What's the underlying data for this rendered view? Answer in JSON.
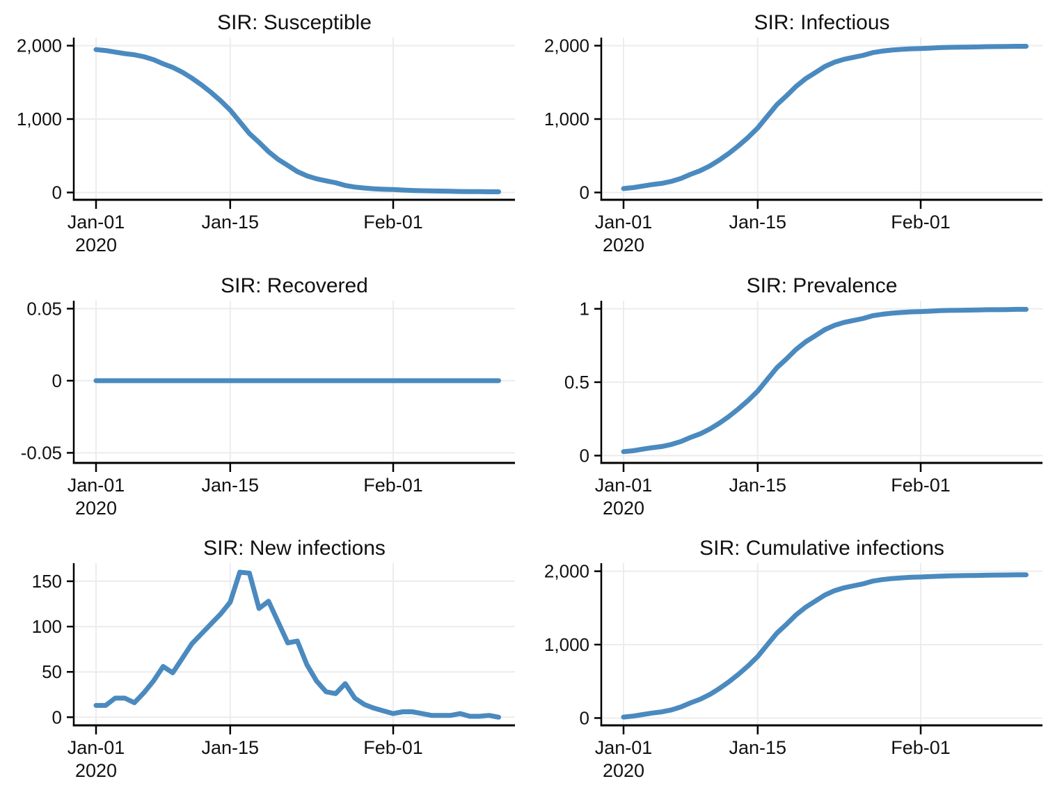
{
  "figure": {
    "background": "#ffffff"
  },
  "colors": {
    "line": "#4a8abf",
    "grid": "#ececec",
    "axis": "#000000",
    "text": "#111111"
  },
  "chart_data": {
    "type": "line",
    "layout": "2x3-grid",
    "grid": true,
    "legend": false,
    "n_points": 43,
    "x_start_date": "2020-01-01",
    "x_end_date": "2020-02-12",
    "x_ticks": [
      {
        "day": 0,
        "label": "Jan-01",
        "sublabel": "2020"
      },
      {
        "day": 14,
        "label": "Jan-15",
        "sublabel": ""
      },
      {
        "day": 31,
        "label": "Feb-01",
        "sublabel": ""
      }
    ],
    "charts": [
      {
        "id": "susceptible",
        "title": "SIR: Susceptible",
        "ylim": [
          -100,
          2110
        ],
        "yticks": [
          {
            "v": 0,
            "label": "0"
          },
          {
            "v": 1000,
            "label": "1,000"
          },
          {
            "v": 2000,
            "label": "2,000"
          }
        ],
        "values": [
          1947,
          1934,
          1913,
          1892,
          1876,
          1849,
          1809,
          1753,
          1704,
          1639,
          1558,
          1466,
          1363,
          1249,
          1122,
          962,
          803,
          683,
          555,
          450,
          368,
          284,
          226,
          186,
          158,
          132,
          95,
          74,
          60,
          50,
          43,
          39,
          33,
          27,
          23,
          21,
          19,
          17,
          13,
          12,
          11,
          9,
          9
        ]
      },
      {
        "id": "infectious",
        "title": "SIR: Infectious",
        "ylim": [
          -100,
          2110
        ],
        "yticks": [
          {
            "v": 0,
            "label": "0"
          },
          {
            "v": 1000,
            "label": "1,000"
          },
          {
            "v": 2000,
            "label": "2,000"
          }
        ],
        "values": [
          53,
          66,
          87,
          108,
          124,
          151,
          191,
          247,
          296,
          361,
          442,
          534,
          637,
          751,
          878,
          1038,
          1197,
          1317,
          1445,
          1550,
          1632,
          1716,
          1774,
          1814,
          1842,
          1868,
          1905,
          1926,
          1940,
          1950,
          1957,
          1961,
          1967,
          1973,
          1977,
          1979,
          1981,
          1983,
          1987,
          1988,
          1989,
          1991,
          1991
        ]
      },
      {
        "id": "recovered",
        "title": "SIR: Recovered",
        "ylim": [
          -0.057,
          0.0555
        ],
        "yticks": [
          {
            "v": -0.05,
            "label": "-0.05"
          },
          {
            "v": 0,
            "label": "0"
          },
          {
            "v": 0.05,
            "label": "0.05"
          }
        ],
        "values": [
          0,
          0,
          0,
          0,
          0,
          0,
          0,
          0,
          0,
          0,
          0,
          0,
          0,
          0,
          0,
          0,
          0,
          0,
          0,
          0,
          0,
          0,
          0,
          0,
          0,
          0,
          0,
          0,
          0,
          0,
          0,
          0,
          0,
          0,
          0,
          0,
          0,
          0,
          0,
          0,
          0,
          0,
          0
        ]
      },
      {
        "id": "prevalence",
        "title": "SIR: Prevalence",
        "ylim": [
          -0.05,
          1.055
        ],
        "yticks": [
          {
            "v": 0,
            "label": "0"
          },
          {
            "v": 0.5,
            "label": "0.5"
          },
          {
            "v": 1,
            "label": "1"
          }
        ],
        "values": [
          0.027,
          0.033,
          0.044,
          0.054,
          0.062,
          0.076,
          0.096,
          0.124,
          0.148,
          0.181,
          0.221,
          0.267,
          0.319,
          0.376,
          0.439,
          0.519,
          0.599,
          0.659,
          0.723,
          0.775,
          0.816,
          0.858,
          0.887,
          0.907,
          0.921,
          0.934,
          0.953,
          0.963,
          0.97,
          0.975,
          0.979,
          0.981,
          0.984,
          0.987,
          0.989,
          0.99,
          0.991,
          0.992,
          0.994,
          0.994,
          0.995,
          0.996,
          0.996
        ]
      },
      {
        "id": "new-infections",
        "title": "SIR: New infections",
        "ylim": [
          -9,
          170
        ],
        "yticks": [
          {
            "v": 0,
            "label": "0"
          },
          {
            "v": 50,
            "label": "50"
          },
          {
            "v": 100,
            "label": "100"
          },
          {
            "v": 150,
            "label": "150"
          }
        ],
        "values": [
          13,
          13,
          21,
          21,
          16,
          27,
          40,
          56,
          49,
          65,
          81,
          92,
          103,
          114,
          127,
          160,
          159,
          120,
          128,
          105,
          82,
          84,
          58,
          40,
          28,
          26,
          37,
          21,
          14,
          10,
          7,
          4,
          6,
          6,
          4,
          2,
          2,
          2,
          4,
          1,
          1,
          2,
          0
        ]
      },
      {
        "id": "cumulative-infections",
        "title": "SIR: Cumulative infections",
        "ylim": [
          -100,
          2110
        ],
        "yticks": [
          {
            "v": 0,
            "label": "0"
          },
          {
            "v": 1000,
            "label": "1,000"
          },
          {
            "v": 2000,
            "label": "2,000"
          }
        ],
        "values": [
          13,
          26,
          47,
          68,
          84,
          111,
          151,
          207,
          256,
          321,
          402,
          494,
          597,
          711,
          838,
          998,
          1157,
          1277,
          1405,
          1510,
          1592,
          1676,
          1734,
          1774,
          1802,
          1828,
          1865,
          1886,
          1900,
          1910,
          1917,
          1921,
          1927,
          1933,
          1937,
          1939,
          1941,
          1943,
          1947,
          1948,
          1949,
          1951,
          1951
        ]
      }
    ]
  }
}
